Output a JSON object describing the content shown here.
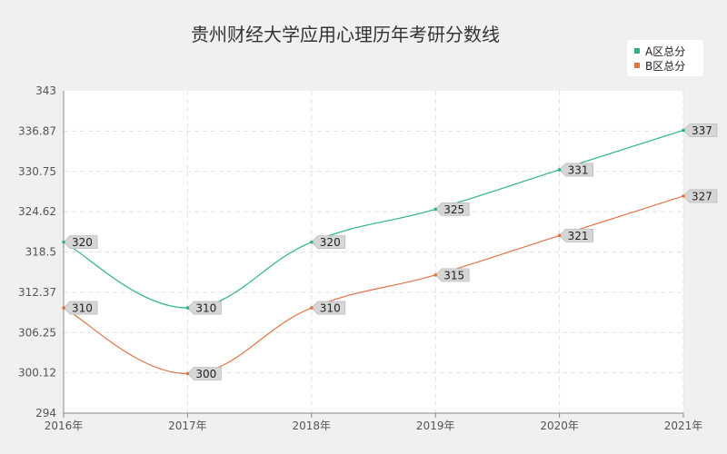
{
  "chart_data": {
    "type": "line",
    "title": "贵州财经大学应用心理历年考研分数线",
    "categories": [
      "2016年",
      "2017年",
      "2018年",
      "2019年",
      "2020年",
      "2021年"
    ],
    "yticks": [
      "294",
      "300.12",
      "306.25",
      "312.37",
      "318.5",
      "324.62",
      "330.75",
      "336.87",
      "343"
    ],
    "ylim": [
      294,
      343
    ],
    "grid": true,
    "legend_position": "top-right",
    "series": [
      {
        "name": "A区总分",
        "color": "#2db38a",
        "values": [
          320,
          310,
          320,
          325,
          331,
          337
        ]
      },
      {
        "name": "B区总分",
        "color": "#e07447",
        "values": [
          310,
          300,
          310,
          315,
          321,
          327
        ]
      }
    ]
  }
}
